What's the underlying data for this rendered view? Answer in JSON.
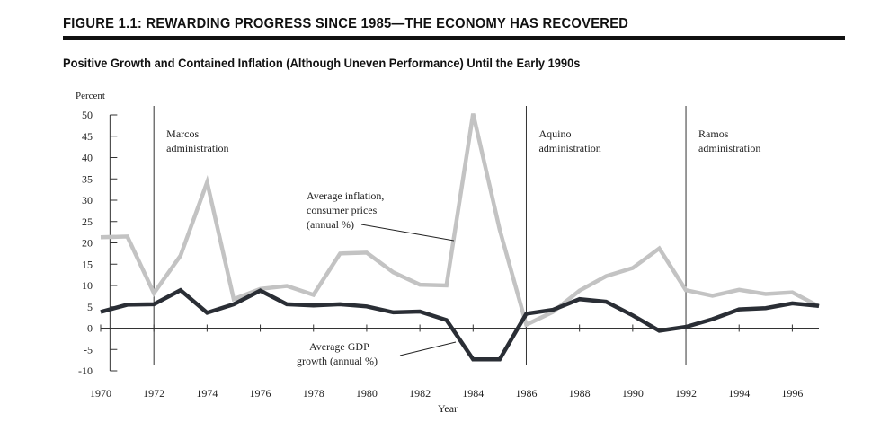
{
  "figure": {
    "title": "FIGURE 1.1: REWARDING PROGRESS SINCE 1985—THE ECONOMY HAS RECOVERED",
    "subtitle": "Positive Growth and Contained Inflation (Although Uneven Performance) Until the Early 1990s"
  },
  "chart_data": {
    "type": "line",
    "ylabel": "Percent",
    "xlabel": "Year",
    "xlim": [
      1970,
      1997
    ],
    "ylim": [
      -10,
      50
    ],
    "x_ticks": [
      1970,
      1972,
      1974,
      1976,
      1978,
      1980,
      1982,
      1984,
      1986,
      1988,
      1990,
      1992,
      1994,
      1996
    ],
    "x_tick_labels": [
      "1970",
      "1972",
      "1974",
      "1976",
      "1978",
      "1980",
      "1982",
      "1984",
      "1986",
      "1988",
      "1990",
      "1992",
      "1994",
      "1996"
    ],
    "y_ticks": [
      -10,
      -5,
      0,
      5,
      10,
      15,
      20,
      25,
      30,
      35,
      40,
      45,
      50
    ],
    "y_tick_labels": [
      "-10",
      "-5",
      "0",
      "5",
      "10",
      "15",
      "20",
      "25",
      "30",
      "35",
      "40",
      "45",
      "50"
    ],
    "grid": false,
    "x": [
      1970,
      1971,
      1972,
      1973,
      1974,
      1975,
      1976,
      1977,
      1978,
      1979,
      1980,
      1981,
      1982,
      1983,
      1984,
      1985,
      1986,
      1987,
      1988,
      1989,
      1990,
      1991,
      1992,
      1993,
      1994,
      1995,
      1996,
      1997
    ],
    "series": [
      {
        "name": "Average inflation, consumer prices (annual %)",
        "color": "#c3c3c3",
        "values": [
          21.3,
          21.5,
          8.2,
          17.0,
          34.2,
          6.8,
          9.2,
          9.9,
          7.8,
          17.5,
          17.7,
          13.1,
          10.2,
          10.0,
          50.3,
          23.1,
          0.8,
          3.8,
          8.8,
          12.2,
          14.1,
          18.7,
          8.9,
          7.6,
          9.0,
          8.0,
          8.4,
          5.1
        ]
      },
      {
        "name": "Average GDP growth (annual %)",
        "color": "#2a2e35",
        "values": [
          3.8,
          5.5,
          5.6,
          8.9,
          3.6,
          5.6,
          8.8,
          5.6,
          5.3,
          5.6,
          5.1,
          3.7,
          3.9,
          1.9,
          -7.3,
          -7.3,
          3.4,
          4.3,
          6.8,
          6.2,
          3.0,
          -0.6,
          0.3,
          2.1,
          4.4,
          4.7,
          5.8,
          5.2
        ]
      }
    ],
    "administrations": [
      {
        "year": 1972,
        "label_line1": "Marcos",
        "label_line2": "administration"
      },
      {
        "year": 1986,
        "label_line1": "Aquino",
        "label_line2": "administration"
      },
      {
        "year": 1992,
        "label_line1": "Ramos",
        "label_line2": "administration"
      }
    ],
    "annotations": {
      "inflation": {
        "line1": "Average inflation,",
        "line2": "consumer prices",
        "line3": "(annual %)"
      },
      "gdp": {
        "line1": "Average GDP",
        "line2": "growth (annual %)"
      }
    }
  }
}
